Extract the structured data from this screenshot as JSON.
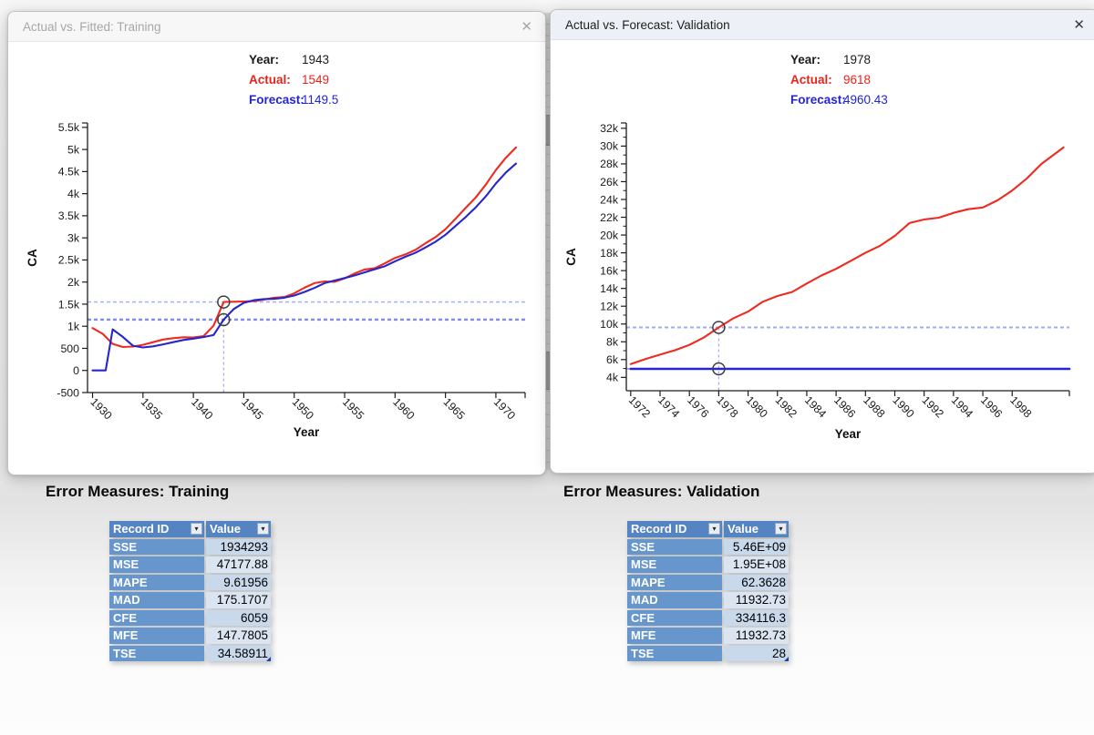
{
  "colors": {
    "actual": "#ef2a1e",
    "forecast": "#2526cc",
    "crosshair_light": "#a0aaf4",
    "crosshair_strong": "#7f8bee",
    "axis": "#1c1c1c",
    "table_header_bg": "#5484c2",
    "table_label_bg": "#6796cd",
    "table_row_odd": "#c9d9ec",
    "table_row_even": "#dbe5f2"
  },
  "windows": [
    {
      "title": "Actual vs. Fitted: Training",
      "close_glyph": "✕",
      "tooltip": {
        "rows": [
          {
            "label": "Year:",
            "value": "1943"
          },
          {
            "label": "Actual:",
            "value": "1549"
          },
          {
            "label": "Forecast:",
            "value": "1149.5"
          }
        ]
      }
    },
    {
      "title": "Actual vs. Forecast: Validation",
      "close_glyph": "✕",
      "tooltip": {
        "rows": [
          {
            "label": "Year:",
            "value": "1978"
          },
          {
            "label": "Actual:",
            "value": "9618"
          },
          {
            "label": "Forecast:",
            "value": "4960.43"
          }
        ]
      }
    }
  ],
  "sections": [
    {
      "heading": "Error Measures: Training",
      "table": {
        "headers": [
          "Record ID",
          "Value"
        ],
        "filter_glyph": "▾",
        "rows": [
          [
            "SSE",
            "1934293"
          ],
          [
            "MSE",
            "47177.88"
          ],
          [
            "MAPE",
            "9.61956"
          ],
          [
            "MAD",
            "175.1707"
          ],
          [
            "CFE",
            "6059"
          ],
          [
            "MFE",
            "147.7805"
          ],
          [
            "TSE",
            "34.58911"
          ]
        ]
      }
    },
    {
      "heading": "Error Measures: Validation",
      "table": {
        "headers": [
          "Record ID",
          "Value"
        ],
        "filter_glyph": "▾",
        "rows": [
          [
            "SSE",
            "5.46E+09"
          ],
          [
            "MSE",
            "1.95E+08"
          ],
          [
            "MAPE",
            "62.3628"
          ],
          [
            "MAD",
            "11932.73"
          ],
          [
            "CFE",
            "334116.3"
          ],
          [
            "MFE",
            "11932.73"
          ],
          [
            "TSE",
            "28"
          ]
        ]
      }
    }
  ],
  "chart_data": [
    {
      "type": "line",
      "title": "Actual vs. Fitted: Training",
      "xlabel": "Year",
      "ylabel": "CA",
      "xlim": [
        1929.5,
        1972.9
      ],
      "ylim": [
        -500,
        5600
      ],
      "grid": false,
      "legend_position": "none",
      "x_ticks": [
        1930,
        1935,
        1940,
        1945,
        1950,
        1955,
        1960,
        1965,
        1970
      ],
      "y_ticks": {
        "labels": [
          "5.5k",
          "5k",
          "4.5k",
          "4k",
          "3.5k",
          "3k",
          "2.5k",
          "2k",
          "1.5k",
          "1k",
          "500",
          "0",
          "-500"
        ],
        "values": [
          5500,
          5000,
          4500,
          4000,
          3500,
          3000,
          2500,
          2000,
          1500,
          1000,
          500,
          0,
          -500
        ]
      },
      "y_minor": false,
      "crosshair": {
        "x": 1943,
        "actual": 1549,
        "forecast": 1149.5
      },
      "series": [
        {
          "name": "Actual",
          "color_key": "actual",
          "points": [
            [
              1930,
              960
            ],
            [
              1931,
              830
            ],
            [
              1932,
              600
            ],
            [
              1933,
              530
            ],
            [
              1934,
              540
            ],
            [
              1935,
              580
            ],
            [
              1936,
              640
            ],
            [
              1937,
              700
            ],
            [
              1938,
              730
            ],
            [
              1939,
              750
            ],
            [
              1940,
              745
            ],
            [
              1941,
              775
            ],
            [
              1942,
              1010
            ],
            [
              1943,
              1549
            ],
            [
              1944,
              1555
            ],
            [
              1945,
              1560
            ],
            [
              1946,
              1570
            ],
            [
              1947,
              1605
            ],
            [
              1948,
              1645
            ],
            [
              1949,
              1660
            ],
            [
              1950,
              1745
            ],
            [
              1951,
              1870
            ],
            [
              1952,
              1975
            ],
            [
              1953,
              2015
            ],
            [
              1954,
              2005
            ],
            [
              1955,
              2085
            ],
            [
              1956,
              2195
            ],
            [
              1957,
              2285
            ],
            [
              1958,
              2315
            ],
            [
              1959,
              2425
            ],
            [
              1960,
              2545
            ],
            [
              1961,
              2625
            ],
            [
              1962,
              2725
            ],
            [
              1963,
              2875
            ],
            [
              1964,
              3015
            ],
            [
              1965,
              3195
            ],
            [
              1966,
              3435
            ],
            [
              1967,
              3675
            ],
            [
              1968,
              3915
            ],
            [
              1969,
              4205
            ],
            [
              1970,
              4535
            ],
            [
              1971,
              4815
            ],
            [
              1972,
              5045
            ]
          ]
        },
        {
          "name": "Forecast",
          "color_key": "forecast",
          "points": [
            [
              1930,
              0
            ],
            [
              1931.3,
              0
            ],
            [
              1932,
              930
            ],
            [
              1933,
              760
            ],
            [
              1934,
              560
            ],
            [
              1935,
              520
            ],
            [
              1936,
              545
            ],
            [
              1937,
              590
            ],
            [
              1938,
              640
            ],
            [
              1939,
              690
            ],
            [
              1940,
              720
            ],
            [
              1941,
              755
            ],
            [
              1942,
              800
            ],
            [
              1943,
              1149.5
            ],
            [
              1944,
              1390
            ],
            [
              1945,
              1530
            ],
            [
              1946,
              1590
            ],
            [
              1947,
              1615
            ],
            [
              1948,
              1620
            ],
            [
              1949,
              1645
            ],
            [
              1950,
              1695
            ],
            [
              1951,
              1775
            ],
            [
              1952,
              1865
            ],
            [
              1953,
              1975
            ],
            [
              1954,
              2035
            ],
            [
              1955,
              2090
            ],
            [
              1956,
              2150
            ],
            [
              1957,
              2220
            ],
            [
              1958,
              2290
            ],
            [
              1959,
              2360
            ],
            [
              1960,
              2470
            ],
            [
              1961,
              2570
            ],
            [
              1962,
              2660
            ],
            [
              1963,
              2780
            ],
            [
              1964,
              2910
            ],
            [
              1965,
              3070
            ],
            [
              1966,
              3270
            ],
            [
              1967,
              3470
            ],
            [
              1968,
              3690
            ],
            [
              1969,
              3940
            ],
            [
              1970,
              4230
            ],
            [
              1971,
              4480
            ],
            [
              1972,
              4680
            ]
          ]
        }
      ]
    },
    {
      "type": "line",
      "title": "Actual vs. Forecast: Validation",
      "xlabel": "Year",
      "ylabel": "CA",
      "xlim": [
        1971.7,
        2001.9
      ],
      "ylim": [
        2500,
        32600
      ],
      "grid": false,
      "legend_position": "none",
      "x_ticks": [
        1972,
        1974,
        1976,
        1978,
        1980,
        1982,
        1984,
        1986,
        1988,
        1990,
        1992,
        1994,
        1996,
        1998
      ],
      "y_ticks": {
        "labels": [
          "32k",
          "30k",
          "28k",
          "26k",
          "24k",
          "22k",
          "20k",
          "18k",
          "16k",
          "14k",
          "12k",
          "10k",
          "8k",
          "6k",
          "4k"
        ],
        "values": [
          32000,
          30000,
          28000,
          26000,
          24000,
          22000,
          20000,
          18000,
          16000,
          14000,
          12000,
          10000,
          8000,
          6000,
          4000
        ]
      },
      "y_minor": true,
      "crosshair": {
        "x": 1978,
        "actual": 9618,
        "forecast": 4960.43
      },
      "series": [
        {
          "name": "Actual",
          "color_key": "actual",
          "points": [
            [
              1972,
              5500
            ],
            [
              1973,
              6050
            ],
            [
              1974,
              6550
            ],
            [
              1975,
              7050
            ],
            [
              1976,
              7650
            ],
            [
              1977,
              8500
            ],
            [
              1978,
              9618
            ],
            [
              1979,
              10650
            ],
            [
              1980,
              11400
            ],
            [
              1981,
              12500
            ],
            [
              1982,
              13150
            ],
            [
              1983,
              13600
            ],
            [
              1984,
              14550
            ],
            [
              1985,
              15450
            ],
            [
              1986,
              16200
            ],
            [
              1987,
              17100
            ],
            [
              1988,
              18000
            ],
            [
              1989,
              18800
            ],
            [
              1990,
              19900
            ],
            [
              1991,
              21350
            ],
            [
              1992,
              21750
            ],
            [
              1993,
              21950
            ],
            [
              1994,
              22500
            ],
            [
              1995,
              22900
            ],
            [
              1996,
              23100
            ],
            [
              1997,
              23900
            ],
            [
              1998,
              25000
            ],
            [
              1999,
              26350
            ],
            [
              2000,
              28000
            ],
            [
              2001.5,
              29850
            ]
          ]
        },
        {
          "name": "Forecast",
          "color_key": "forecast",
          "points": [
            [
              1972,
              4960.43
            ],
            [
              2001.9,
              4960.43
            ]
          ]
        }
      ]
    }
  ]
}
